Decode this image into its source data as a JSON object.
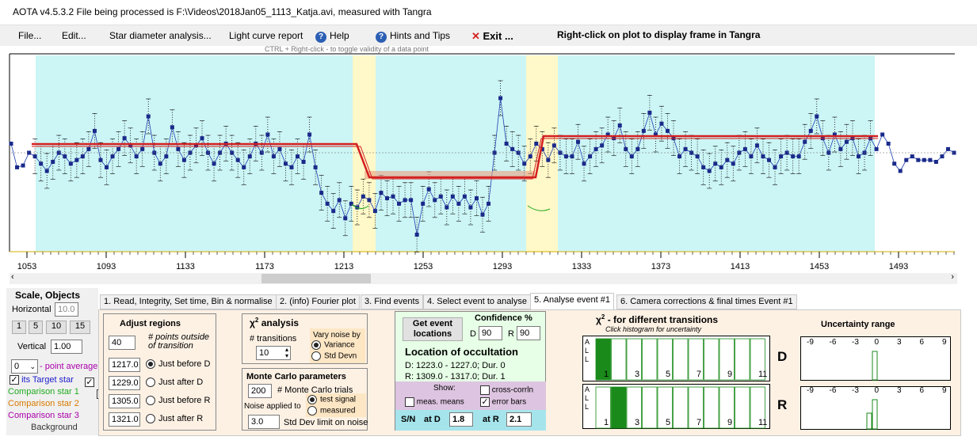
{
  "title": "AOTA v4.5.3.2    File being processed is F:\\Videos\\2018Jan05_1113_Katja.avi, measured with Tangra",
  "menu": {
    "file": "File...",
    "edit": "Edit...",
    "star_diam": "Star diameter analysis...",
    "light_curve": "Light curve report",
    "help": "Help",
    "hints": "Hints and Tips",
    "exit": "Exit ..."
  },
  "right_click": "Right-click on plot to display frame in Tangra",
  "ctrl_hint": "CTRL + Right-click  -  to toggle validity of a data point",
  "chart_data": {
    "type": "line",
    "x_ticks": [
      "1053",
      "1093",
      "1133",
      "1173",
      "1213",
      "1253",
      "1293",
      "1333",
      "1373",
      "1413",
      "1453",
      "1493"
    ],
    "y": [
      0.55,
      0.42,
      0.43,
      0.5,
      0.48,
      0.44,
      0.4,
      0.45,
      0.5,
      0.48,
      0.44,
      0.46,
      0.48,
      0.52,
      0.62,
      0.46,
      0.42,
      0.48,
      0.52,
      0.58,
      0.54,
      0.48,
      0.52,
      0.7,
      0.5,
      0.44,
      0.48,
      0.64,
      0.52,
      0.46,
      0.5,
      0.54,
      0.58,
      0.5,
      0.44,
      0.5,
      0.55,
      0.5,
      0.46,
      0.42,
      0.48,
      0.55,
      0.5,
      0.6,
      0.48,
      0.52,
      0.44,
      0.42,
      0.48,
      0.45,
      0.6,
      0.42,
      0.28,
      0.22,
      0.18,
      0.24,
      0.14,
      0.22,
      0.2,
      0.26,
      0.24,
      0.18,
      0.28,
      0.25,
      0.26,
      0.22,
      0.24,
      0.24,
      0.05,
      0.22,
      0.3,
      0.24,
      0.26,
      0.2,
      0.26,
      0.22,
      0.26,
      0.2,
      0.25,
      0.16,
      0.22,
      0.5,
      0.8,
      0.55,
      0.52,
      0.5,
      0.44,
      0.48,
      0.55,
      0.52,
      0.46,
      0.54,
      0.5,
      0.48,
      0.48,
      0.56,
      0.44,
      0.48,
      0.52,
      0.54,
      0.6,
      0.58,
      0.65,
      0.52,
      0.48,
      0.52,
      0.62,
      0.72,
      0.6,
      0.66,
      0.62,
      0.58,
      0.48,
      0.52,
      0.5,
      0.48,
      0.42,
      0.4,
      0.44,
      0.42,
      0.46,
      0.44,
      0.5,
      0.52,
      0.48,
      0.54,
      0.48,
      0.46,
      0.42,
      0.48,
      0.5,
      0.48,
      0.48,
      0.56,
      0.62,
      0.7,
      0.58,
      0.5,
      0.6,
      0.52,
      0.56,
      0.58,
      0.48,
      0.5,
      0.58,
      0.52,
      0.6,
      0.55,
      0.44,
      0.4,
      0.46,
      0.48,
      0.46,
      0.46,
      0.46,
      0.45,
      0.48,
      0.52,
      0.5
    ]
  },
  "scale": {
    "title": "Scale,  Objects",
    "horizontal": "Horizontal",
    "hval": "10.0",
    "b1": "1",
    "b5": "5",
    "b10": "10",
    "b15": "15",
    "vertical": "Vertical",
    "vval": "1.00",
    "avg": "0",
    "avg_label": "- point average"
  },
  "objects": [
    {
      "name": "Target star",
      "color": "#1a1acc"
    },
    {
      "name": "Comparison star 1",
      "color": "#1faa1f"
    },
    {
      "name": "Comparison star 2",
      "color": "#d87a00"
    },
    {
      "name": "Comparison star 3",
      "color": "#aa00aa"
    },
    {
      "name": "Background",
      "color": "#333333"
    }
  ],
  "tabs": [
    "1. Read, Integrity, Set time, Bin & normalise",
    "2. (info)  Fourier plot",
    "3. Find events",
    "4. Select event to analyse",
    "5. Analyse event #1",
    "6. Camera corrections & final times Event #1"
  ],
  "adjust": {
    "title": "Adjust regions",
    "pts": "40",
    "pts_label": "# points outside of transition",
    "v1": "1217.0",
    "l1": "Just before D",
    "v2": "1229.0",
    "l2": "Just after D",
    "v3": "1305.0",
    "l3": "Just before R",
    "v4": "1321.0",
    "l4": "Just after R"
  },
  "chi": {
    "title": "analysis",
    "chi": "χ",
    "sup": "2",
    "trans_label": "# transitions",
    "trans": "10",
    "vary": "Vary noise by",
    "variance": "Variance",
    "stddev": "Std Devn"
  },
  "mc": {
    "title": "Monte Carlo parameters",
    "trials": "200",
    "trials_label": "# Monte Carlo trials",
    "noise_label": "Noise applied to",
    "test": "test signal",
    "measured": "measured",
    "sd": "3.0",
    "sd_label": "Std Dev limit on noise"
  },
  "loc": {
    "btn": "Get event locations",
    "conf": "Confidence %",
    "d": "D",
    "dval": "90",
    "r": "R",
    "rval": "90",
    "title": "Location of occultation",
    "dline": "D: 1223.0 - 1227.0; Dur. 0",
    "rline": "R: 1309.0 - 1317.0; Dur. 1",
    "show": "Show:",
    "meas": "meas. means",
    "cross": "cross-corrln",
    "err": "error bars",
    "sn": "S/N",
    "atd": "at D",
    "dv": "1.8",
    "atr": "at R",
    "rv": "2.1"
  },
  "hist": {
    "title": "- for different transitions",
    "chi": "χ",
    "sup": "2",
    "sub": "Click histogram for uncertainty",
    "all": [
      "A",
      "L",
      "L"
    ],
    "ticks": [
      "1",
      "3",
      "5",
      "7",
      "9",
      "11"
    ],
    "d": "D",
    "r": "R"
  },
  "unc": {
    "title": "Uncertainty range",
    "ticks": [
      "-9",
      "-6",
      "-3",
      "0",
      "3",
      "6",
      "9"
    ]
  },
  "colors": {
    "cyan": "#ccf5f5",
    "yellow": "#fff8c8",
    "red": "#d42020",
    "panel": "#fdf1e4"
  }
}
